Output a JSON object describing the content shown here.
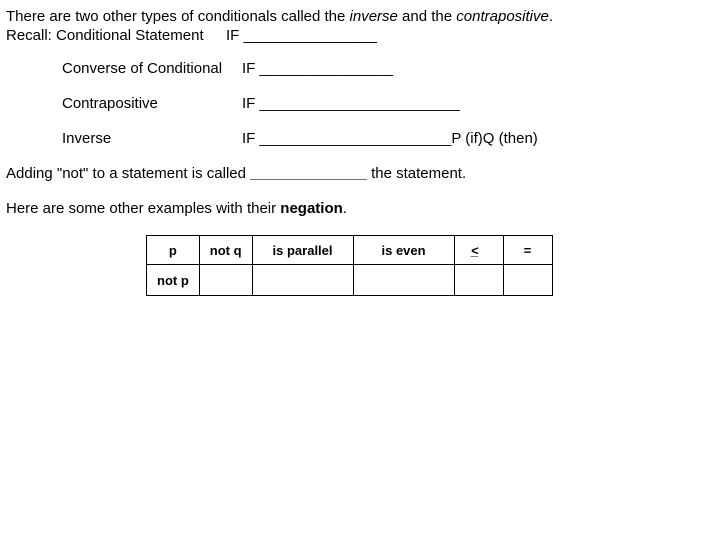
{
  "intro": {
    "prefix": "There are two other types of conditionals called the ",
    "italic1": "inverse",
    "mid": " and the ",
    "italic2": "contrapositive",
    "suffix": "."
  },
  "recall": {
    "label": "Recall:   Conditional Statement",
    "if": "IF ________________"
  },
  "rows": {
    "converse": {
      "label": "Converse of Conditional",
      "if": "IF ________________"
    },
    "contrapositive": {
      "label": "Contrapositive",
      "if": "IF ________________________"
    },
    "inverse": {
      "label": "Inverse",
      "if": "IF _______________________P (if)Q (then)"
    }
  },
  "adding": {
    "prefix": "Adding \"not\" to a statement is called ",
    "blank": "______________",
    "suffix": " the statement."
  },
  "examples": {
    "prefix": "Here are some other examples with their ",
    "bold": "negation",
    "suffix": "."
  },
  "table": {
    "r1": {
      "c1": "p",
      "c2": "not q",
      "c3": "is parallel",
      "c4": "is even",
      "c5": "<",
      "c6": "="
    },
    "r2": {
      "c1": "not p",
      "c2": "",
      "c3": "",
      "c4": "",
      "c5": "",
      "c6": ""
    }
  }
}
